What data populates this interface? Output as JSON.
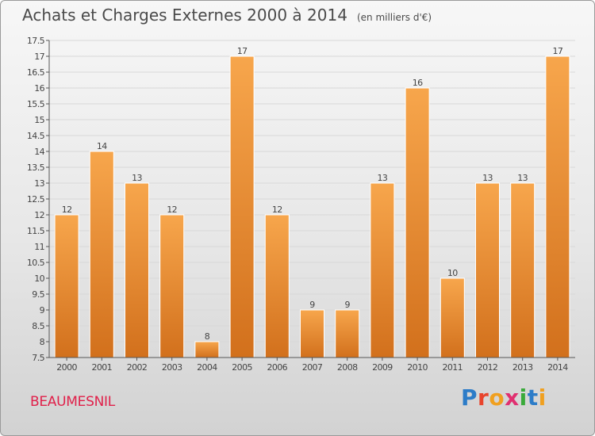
{
  "header": {
    "title": "Achats et Charges Externes 2000 à 2014",
    "unit": "(en milliers d'€)"
  },
  "footer": {
    "commune": "BEAUMESNIL",
    "brand_letters": [
      {
        "ch": "P",
        "color": "#2c7cc8"
      },
      {
        "ch": "r",
        "color": "#e8442c"
      },
      {
        "ch": "o",
        "color": "#f0a020"
      },
      {
        "ch": "x",
        "color": "#e03070"
      },
      {
        "ch": "i",
        "color": "#3aaa3a"
      },
      {
        "ch": "t",
        "color": "#2c7cc8"
      },
      {
        "ch": "i",
        "color": "#f0a020"
      }
    ]
  },
  "colors": {
    "bar_top": "#f7a64c",
    "bar_bottom": "#d2701c",
    "axis": "#555555",
    "grid": "#d8d8d8"
  },
  "chart_data": {
    "type": "bar",
    "title": "Achats et Charges Externes 2000 à 2014",
    "subtitle": "(en milliers d'€)",
    "categories": [
      "2000",
      "2001",
      "2002",
      "2003",
      "2004",
      "2005",
      "2006",
      "2007",
      "2008",
      "2009",
      "2010",
      "2011",
      "2012",
      "2013",
      "2014"
    ],
    "values": [
      12,
      14,
      13,
      12,
      8,
      17,
      12,
      9,
      9,
      13,
      16,
      10,
      13,
      13,
      17
    ],
    "value_labels": [
      "12",
      "14",
      "13",
      "12",
      "8",
      "17",
      "12",
      "9",
      "9",
      "13",
      "16",
      "10",
      "13",
      "13",
      "17"
    ],
    "ylim": [
      7.5,
      17.5
    ],
    "yticks": [
      "7.5",
      "8",
      "8.5",
      "9",
      "9.5",
      "10",
      "10.5",
      "11",
      "11.5",
      "12",
      "12.5",
      "13",
      "13.5",
      "14",
      "14.5",
      "15",
      "15.5",
      "16",
      "16.5",
      "17",
      "17.5"
    ],
    "grid": true,
    "legend": "none"
  }
}
